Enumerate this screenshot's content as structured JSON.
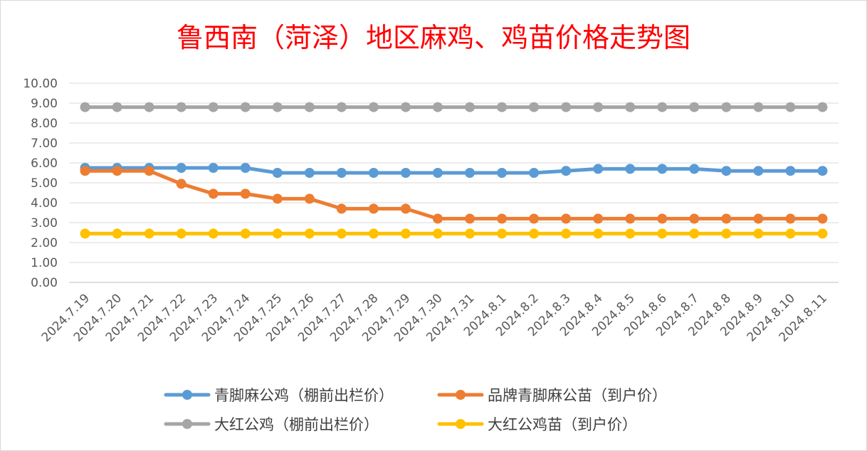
{
  "chart_data": {
    "type": "line",
    "title": "鲁西南（菏泽）地区麻鸡、鸡苗价格走势图",
    "title_color": "#ff0000",
    "xlabel": "",
    "ylabel": "",
    "ylim": [
      0,
      10
    ],
    "y_ticks": [
      "0.00",
      "1.00",
      "2.00",
      "3.00",
      "4.00",
      "5.00",
      "6.00",
      "7.00",
      "8.00",
      "9.00",
      "10.00"
    ],
    "grid": true,
    "legend_position": "bottom",
    "categories": [
      "2024.7.19",
      "2024.7.20",
      "2024.7.21",
      "2024.7.22",
      "2024.7.23",
      "2024.7.24",
      "2024.7.25",
      "2024.7.26",
      "2024.7.27",
      "2024.7.28",
      "2024.7.29",
      "2024.7.30",
      "2024.7.31",
      "2024.8.1",
      "2024.8.2",
      "2024.8.3",
      "2024.8.4",
      "2024.8.5",
      "2024.8.6",
      "2024.8.7",
      "2024.8.8",
      "2024.8.9",
      "2024.8.10",
      "2024.8.11"
    ],
    "series": [
      {
        "name": "青脚麻公鸡（棚前出栏价）",
        "color": "#5b9bd5",
        "values": [
          5.75,
          5.75,
          5.75,
          5.75,
          5.75,
          5.75,
          5.5,
          5.5,
          5.5,
          5.5,
          5.5,
          5.5,
          5.5,
          5.5,
          5.5,
          5.6,
          5.7,
          5.7,
          5.7,
          5.7,
          5.6,
          5.6,
          5.6,
          5.6
        ]
      },
      {
        "name": "品牌青脚麻公苗（到户价）",
        "color": "#ed7d31",
        "values": [
          5.6,
          5.6,
          5.6,
          4.95,
          4.45,
          4.45,
          4.2,
          4.2,
          3.7,
          3.7,
          3.7,
          3.2,
          3.2,
          3.2,
          3.2,
          3.2,
          3.2,
          3.2,
          3.2,
          3.2,
          3.2,
          3.2,
          3.2,
          3.2
        ]
      },
      {
        "name": "大红公鸡（棚前出栏价）",
        "color": "#a5a5a5",
        "values": [
          8.8,
          8.8,
          8.8,
          8.8,
          8.8,
          8.8,
          8.8,
          8.8,
          8.8,
          8.8,
          8.8,
          8.8,
          8.8,
          8.8,
          8.8,
          8.8,
          8.8,
          8.8,
          8.8,
          8.8,
          8.8,
          8.8,
          8.8,
          8.8
        ]
      },
      {
        "name": "大红公鸡苗（到户价）",
        "color": "#ffc000",
        "values": [
          2.45,
          2.45,
          2.45,
          2.45,
          2.45,
          2.45,
          2.45,
          2.45,
          2.45,
          2.45,
          2.45,
          2.45,
          2.45,
          2.45,
          2.45,
          2.45,
          2.45,
          2.45,
          2.45,
          2.45,
          2.45,
          2.45,
          2.45,
          2.45
        ]
      }
    ]
  }
}
